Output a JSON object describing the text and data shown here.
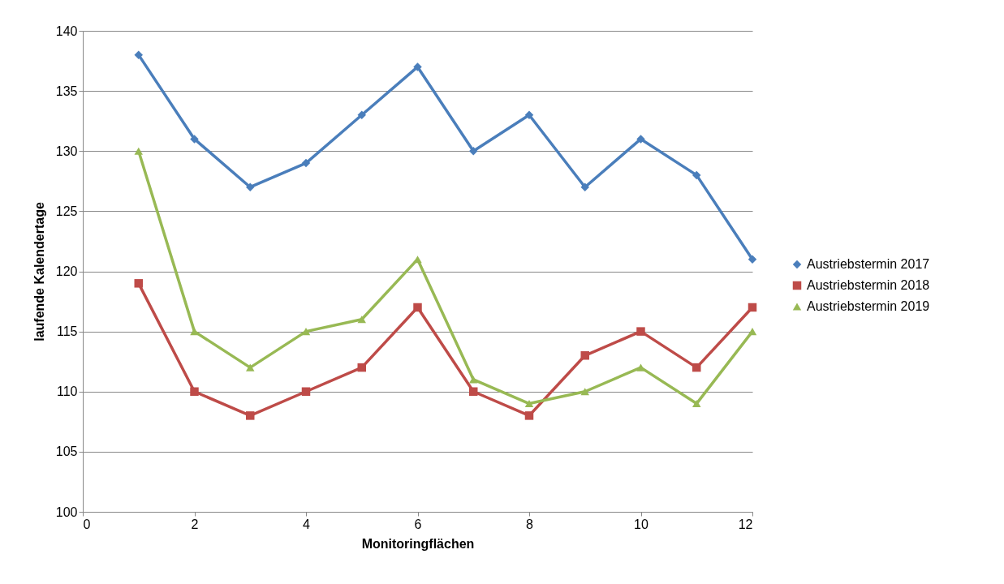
{
  "chart_data": {
    "type": "line",
    "xlabel": "Monitoringflächen",
    "ylabel": "laufende Kalendertage",
    "x": [
      1,
      2,
      3,
      4,
      5,
      6,
      7,
      8,
      9,
      10,
      11,
      12
    ],
    "xlim": [
      0,
      12
    ],
    "xticks": [
      0,
      2,
      4,
      6,
      8,
      10,
      12
    ],
    "ylim": [
      100,
      140
    ],
    "yticks": [
      100,
      105,
      110,
      115,
      120,
      125,
      130,
      135,
      140
    ],
    "grid": "y",
    "legend": "right",
    "series": [
      {
        "name": "Austriebstermin 2017",
        "color": "#4a7ebb",
        "marker": "diamond",
        "values": [
          138,
          131,
          127,
          129,
          133,
          137,
          130,
          133,
          127,
          131,
          128,
          121
        ]
      },
      {
        "name": "Austriebstermin 2018",
        "color": "#be4b48",
        "marker": "square",
        "values": [
          119,
          110,
          108,
          110,
          112,
          117,
          110,
          108,
          113,
          115,
          112,
          117
        ]
      },
      {
        "name": "Austriebstermin 2019",
        "color": "#98b954",
        "marker": "triangle",
        "values": [
          130,
          115,
          112,
          115,
          116,
          121,
          111,
          109,
          110,
          112,
          109,
          115
        ]
      }
    ]
  }
}
